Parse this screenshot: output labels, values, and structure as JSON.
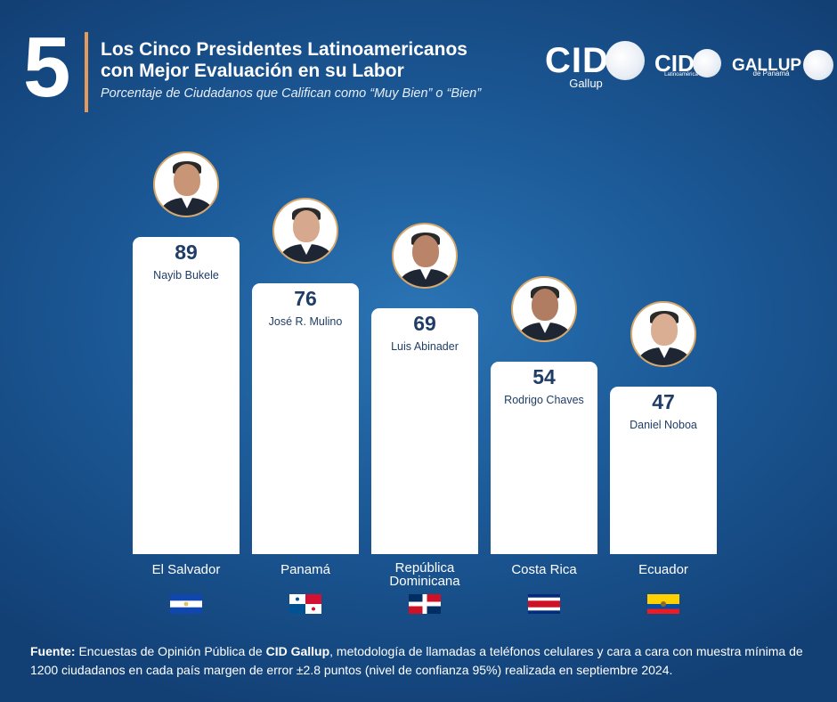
{
  "header": {
    "number": "5",
    "title_line1": "Los Cinco Presidentes Latinoamericanos",
    "title_line2": "con Mejor Evaluación en su Labor",
    "subtitle": "Porcentaje de Ciudadanos que Califican como “Muy Bien” o “Bien”"
  },
  "logos": {
    "cid_gallup": {
      "word": "CID",
      "sub": "Gallup"
    },
    "cid_latinoamerica": {
      "word": "CID",
      "sub": "Latinoamérica"
    },
    "gallup_panama": {
      "word": "GALLUP",
      "sub": "de Panamá"
    }
  },
  "chart_data": {
    "type": "bar",
    "title": "Los Cinco Presidentes Latinoamericanos con Mejor Evaluación en su Labor",
    "subtitle": "Porcentaje de Ciudadanos que Califican como “Muy Bien” o “Bien”",
    "categories": [
      "El Salvador",
      "Panamá",
      "República Dominicana",
      "Costa Rica",
      "Ecuador"
    ],
    "category_lines": [
      [
        "El Salvador"
      ],
      [
        "Panamá"
      ],
      [
        "República",
        "Dominicana"
      ],
      [
        "Costa Rica"
      ],
      [
        "Ecuador"
      ]
    ],
    "series": [
      {
        "values": [
          89,
          76,
          69,
          54,
          47
        ],
        "labels": [
          "Nayib Bukele",
          "José R. Mulino",
          "Luis Abinader",
          "Rodrigo Chaves",
          "Daniel Noboa"
        ]
      }
    ],
    "ylim": [
      0,
      100
    ],
    "grid": false,
    "legend": "none",
    "flags": [
      "el-salvador-flag",
      "panama-flag",
      "dominican-republic-flag",
      "costa-rica-flag",
      "ecuador-flag"
    ]
  },
  "colors": {
    "background": "#1c5a98",
    "bar": "#ffffff",
    "value_text": "#1f3d66",
    "accent": "#e69a5a"
  },
  "footer": {
    "label": "Fuente:",
    "text1": " Encuestas de Opinión Pública de ",
    "brand": "CID Gallup",
    "text2": ", metodología de llamadas a teléfonos celulares y cara a cara con muestra mínima de 1200 ciudadanos en cada país margen de error ±2.8 puntos (nivel de confianza 95%) realizada en septiembre 2024."
  }
}
